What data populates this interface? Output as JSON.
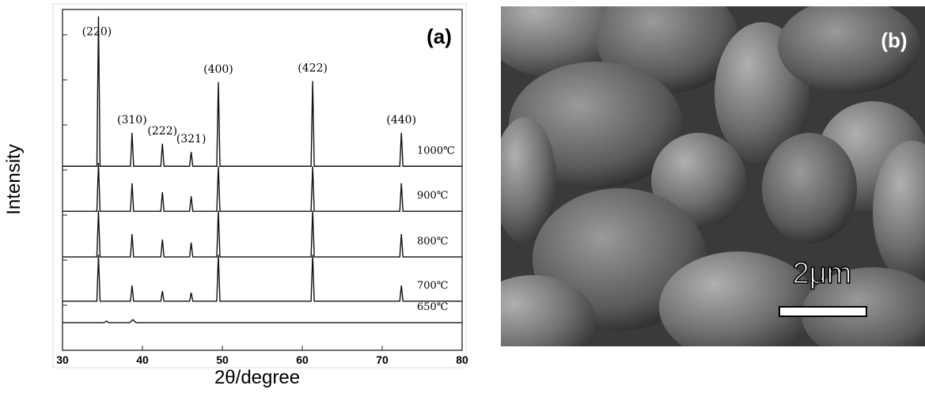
{
  "chart_data": {
    "type": "line",
    "title": "(a)",
    "xlabel": "2θ/degree",
    "ylabel": "Intensity",
    "xlim": [
      30,
      80
    ],
    "xticks": [
      30,
      40,
      50,
      60,
      70,
      80
    ],
    "ylim": [
      0,
      100
    ],
    "annotations": [
      {
        "text": "(220)",
        "x": 34.5
      },
      {
        "text": "(310)",
        "x": 38.7
      },
      {
        "text": "(222)",
        "x": 42.5
      },
      {
        "text": "(321)",
        "x": 46.1
      },
      {
        "text": "(400)",
        "x": 49.5
      },
      {
        "text": "(422)",
        "x": 61.3
      },
      {
        "text": "(440)",
        "x": 72.4
      }
    ],
    "series": [
      {
        "name": "1000℃",
        "color": "#111111",
        "x": [
          30,
          34.3,
          34.5,
          34.7,
          38.5,
          38.7,
          38.9,
          42.3,
          42.5,
          42.7,
          45.9,
          46.1,
          46.3,
          49.3,
          49.5,
          49.7,
          61.1,
          61.3,
          61.5,
          72.2,
          72.4,
          72.6,
          80
        ],
        "values": [
          54,
          54,
          98,
          54,
          54,
          63.8,
          54,
          54,
          60.6,
          54,
          54,
          58.2,
          54,
          54,
          78.7,
          54,
          54,
          79,
          54,
          54,
          63.8,
          54,
          54
        ]
      },
      {
        "name": "900℃",
        "color": "#111111",
        "x": [
          30,
          34.3,
          34.5,
          34.7,
          38.5,
          38.7,
          38.9,
          42.3,
          42.5,
          42.7,
          45.9,
          46.1,
          46.3,
          49.3,
          49.5,
          49.7,
          61.1,
          61.3,
          61.5,
          72.2,
          72.4,
          72.6,
          80
        ],
        "values": [
          40.8,
          40.8,
          55,
          40.8,
          40.8,
          49,
          40.8,
          40.8,
          46.4,
          40.8,
          40.8,
          45.2,
          40.8,
          40.8,
          54,
          40.8,
          40.8,
          54,
          40.8,
          40.8,
          49,
          40.8,
          40.8
        ]
      },
      {
        "name": "800℃",
        "color": "#111111",
        "x": [
          30,
          34.3,
          34.5,
          34.7,
          38.5,
          38.7,
          38.9,
          42.3,
          42.5,
          42.7,
          45.9,
          46.1,
          46.3,
          49.3,
          49.5,
          49.7,
          61.1,
          61.3,
          61.5,
          72.2,
          72.4,
          72.6,
          80
        ],
        "values": [
          27.4,
          27.4,
          41,
          27.4,
          27.4,
          34.1,
          27.4,
          27.4,
          32.5,
          27.4,
          27.4,
          31.6,
          27.4,
          27.4,
          41,
          27.4,
          27.4,
          41,
          27.4,
          27.4,
          34.1,
          27.4,
          27.4
        ]
      },
      {
        "name": "700℃",
        "color": "#111111",
        "x": [
          30,
          34.3,
          34.5,
          34.7,
          38.5,
          38.7,
          38.9,
          42.3,
          42.5,
          42.7,
          45.9,
          46.1,
          46.3,
          49.3,
          49.5,
          49.7,
          61.1,
          61.3,
          61.5,
          72.2,
          72.4,
          72.6,
          80
        ],
        "values": [
          14.4,
          14.4,
          28,
          14.4,
          14.4,
          19,
          14.4,
          14.4,
          17.4,
          14.4,
          14.4,
          16.9,
          14.4,
          14.4,
          28,
          14.4,
          14.4,
          28,
          14.4,
          14.4,
          19,
          14.4,
          14.4
        ]
      },
      {
        "name": "650℃",
        "color": "#111111",
        "x": [
          30,
          35.2,
          35.5,
          35.8,
          38.4,
          38.8,
          39.2,
          80
        ],
        "values": [
          8.1,
          8.1,
          8.6,
          8.1,
          8.1,
          9,
          8.1,
          8.1
        ]
      }
    ]
  },
  "image": {
    "label": "(b)",
    "scale_bar": "2μm"
  }
}
